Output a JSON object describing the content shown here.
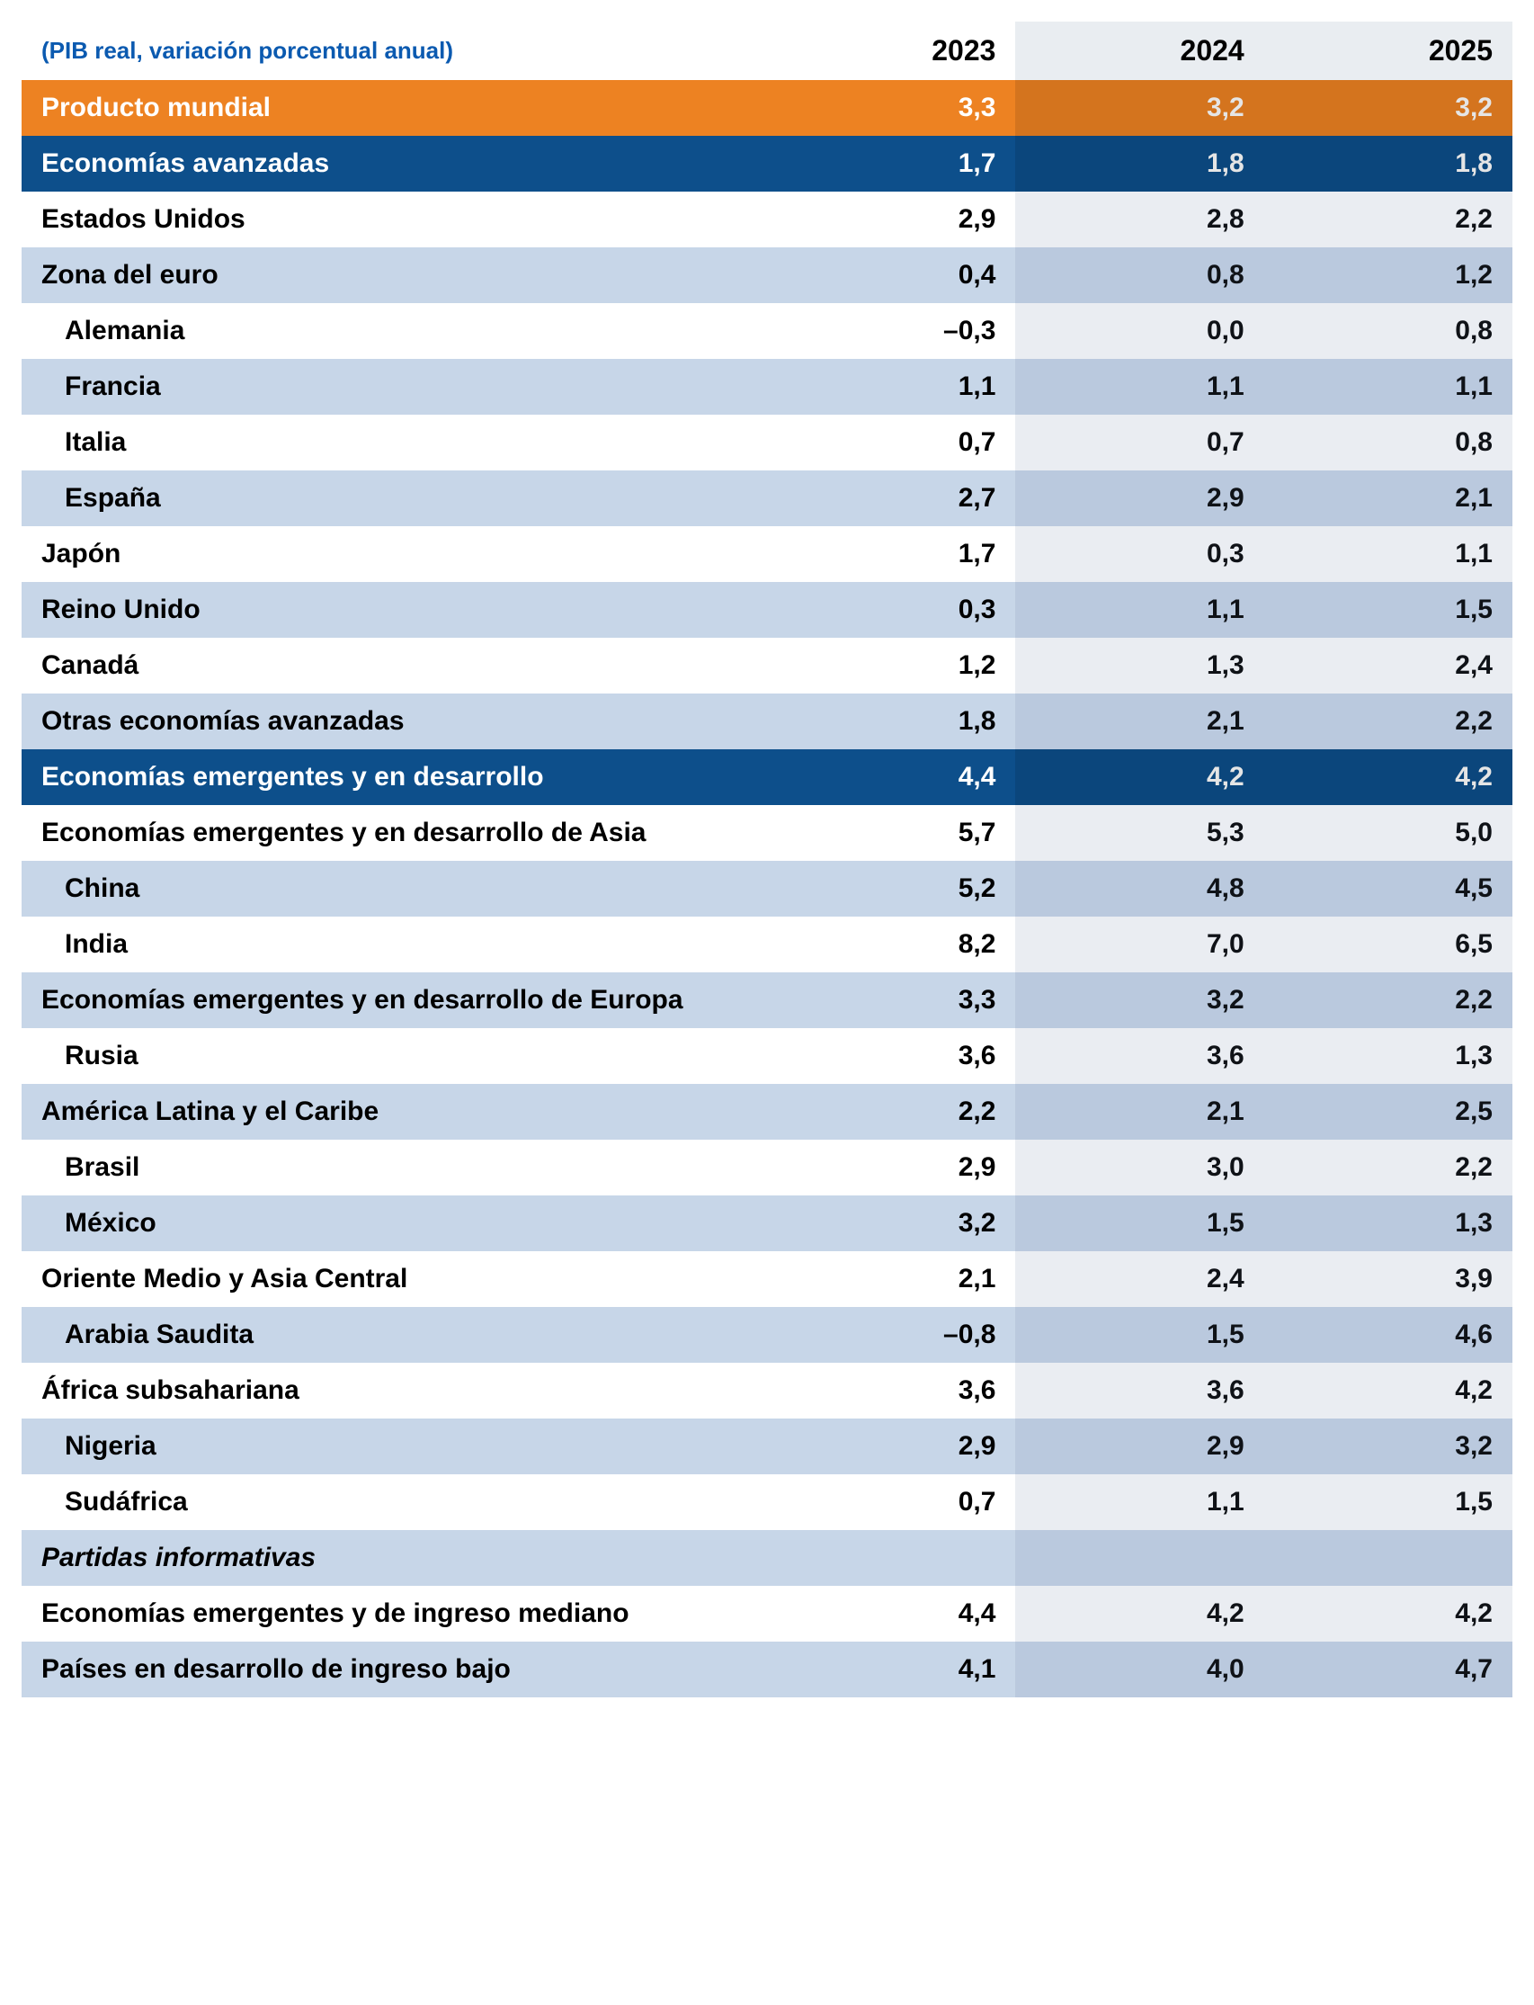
{
  "header": {
    "subtitle": "(PIB real, variación porcentual anual)",
    "years": [
      "2023",
      "2024",
      "2025"
    ]
  },
  "colors": {
    "brand_blue": "#0b5ab0",
    "row_orange": "#ed8222",
    "row_navy": "#0d4f8b",
    "row_light_blue": "#c7d6e8",
    "row_white": "#ffffff",
    "forecast_header_band": "#e9edf1",
    "text_dark": "#000000",
    "text_light": "#ffffff"
  },
  "rows": [
    {
      "label": "Producto mundial",
      "v": [
        "3,3",
        "3,2",
        "3,2"
      ],
      "style": "orange",
      "indent": false
    },
    {
      "label": "Economías avanzadas",
      "v": [
        "1,7",
        "1,8",
        "1,8"
      ],
      "style": "navy",
      "indent": false
    },
    {
      "label": "Estados Unidos",
      "v": [
        "2,9",
        "2,8",
        "2,2"
      ],
      "style": "white",
      "indent": false
    },
    {
      "label": "Zona del euro",
      "v": [
        "0,4",
        "0,8",
        "1,2"
      ],
      "style": "blue",
      "indent": false
    },
    {
      "label": "Alemania",
      "v": [
        "–0,3",
        "0,0",
        "0,8"
      ],
      "style": "white",
      "indent": true
    },
    {
      "label": "Francia",
      "v": [
        "1,1",
        "1,1",
        "1,1"
      ],
      "style": "blue",
      "indent": true
    },
    {
      "label": "Italia",
      "v": [
        "0,7",
        "0,7",
        "0,8"
      ],
      "style": "white",
      "indent": true
    },
    {
      "label": "España",
      "v": [
        "2,7",
        "2,9",
        "2,1"
      ],
      "style": "blue",
      "indent": true
    },
    {
      "label": "Japón",
      "v": [
        "1,7",
        "0,3",
        "1,1"
      ],
      "style": "white",
      "indent": false
    },
    {
      "label": "Reino Unido",
      "v": [
        "0,3",
        "1,1",
        "1,5"
      ],
      "style": "blue",
      "indent": false
    },
    {
      "label": "Canadá",
      "v": [
        "1,2",
        "1,3",
        "2,4"
      ],
      "style": "white",
      "indent": false
    },
    {
      "label": "Otras economías avanzadas",
      "v": [
        "1,8",
        "2,1",
        "2,2"
      ],
      "style": "blue",
      "indent": false
    },
    {
      "label": "Economías emergentes y en desarrollo",
      "v": [
        "4,4",
        "4,2",
        "4,2"
      ],
      "style": "navy",
      "indent": false
    },
    {
      "label": "Economías emergentes y en desarrollo de Asia",
      "v": [
        "5,7",
        "5,3",
        "5,0"
      ],
      "style": "white",
      "indent": false
    },
    {
      "label": "China",
      "v": [
        "5,2",
        "4,8",
        "4,5"
      ],
      "style": "blue",
      "indent": true
    },
    {
      "label": "India",
      "v": [
        "8,2",
        "7,0",
        "6,5"
      ],
      "style": "white",
      "indent": true
    },
    {
      "label": "Economías emergentes y en desarrollo de Europa",
      "v": [
        "3,3",
        "3,2",
        "2,2"
      ],
      "style": "blue",
      "indent": false
    },
    {
      "label": "Rusia",
      "v": [
        "3,6",
        "3,6",
        "1,3"
      ],
      "style": "white",
      "indent": true
    },
    {
      "label": "América Latina y el Caribe",
      "v": [
        "2,2",
        "2,1",
        "2,5"
      ],
      "style": "blue",
      "indent": false
    },
    {
      "label": "Brasil",
      "v": [
        "2,9",
        "3,0",
        "2,2"
      ],
      "style": "white",
      "indent": true
    },
    {
      "label": "México",
      "v": [
        "3,2",
        "1,5",
        "1,3"
      ],
      "style": "blue",
      "indent": true
    },
    {
      "label": "Oriente Medio y Asia Central",
      "v": [
        "2,1",
        "2,4",
        "3,9"
      ],
      "style": "white",
      "indent": false
    },
    {
      "label": "Arabia Saudita",
      "v": [
        "–0,8",
        "1,5",
        "4,6"
      ],
      "style": "blue",
      "indent": true
    },
    {
      "label": "África subsahariana",
      "v": [
        "3,6",
        "3,6",
        "4,2"
      ],
      "style": "white",
      "indent": false
    },
    {
      "label": "Nigeria",
      "v": [
        "2,9",
        "2,9",
        "3,2"
      ],
      "style": "blue",
      "indent": true
    },
    {
      "label": "Sudáfrica",
      "v": [
        "0,7",
        "1,1",
        "1,5"
      ],
      "style": "white",
      "indent": true
    },
    {
      "label": "Partidas informativas",
      "v": [
        "",
        "",
        ""
      ],
      "style": "blue",
      "indent": false,
      "italic": true
    },
    {
      "label": "Economías emergentes y de ingreso mediano",
      "v": [
        "4,4",
        "4,2",
        "4,2"
      ],
      "style": "white",
      "indent": false
    },
    {
      "label": "Países en desarrollo de ingreso bajo",
      "v": [
        "4,1",
        "4,0",
        "4,7"
      ],
      "style": "blue",
      "indent": false
    }
  ]
}
